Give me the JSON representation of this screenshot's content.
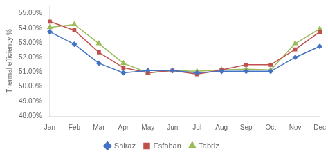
{
  "chart_data": {
    "type": "line",
    "categories": [
      "Jan",
      "Feb",
      "Mar",
      "Apr",
      "May",
      "Jun",
      "Jul",
      "Aug",
      "Sep",
      "Oct",
      "Nov",
      "Dec"
    ],
    "series": [
      {
        "name": "Shiraz",
        "color": "#4472C4",
        "marker": "diamond",
        "line_style": "solid",
        "values": [
          53.75,
          52.9,
          51.6,
          50.95,
          51.1,
          51.1,
          50.95,
          51.05,
          51.05,
          51.05,
          52.0,
          52.75
        ]
      },
      {
        "name": "Esfahan",
        "color": "#C0504D",
        "marker": "square",
        "line_style": "solid",
        "values": [
          54.45,
          53.85,
          52.35,
          51.3,
          50.95,
          51.1,
          50.85,
          51.15,
          51.5,
          51.5,
          52.55,
          53.75
        ]
      },
      {
        "name": "Tabriz",
        "color": "#9BBB59",
        "marker": "triangle",
        "line_style": "solid",
        "values": [
          54.05,
          54.25,
          52.95,
          51.6,
          50.95,
          51.1,
          51.05,
          51.15,
          51.2,
          51.15,
          52.95,
          53.95
        ]
      }
    ],
    "y_label": "Thermal efficiency %",
    "ylim": [
      48.0,
      55.5
    ],
    "yticks": [
      {
        "value": 48.0,
        "label": "48.00%"
      },
      {
        "value": 49.0,
        "label": "49.00%"
      },
      {
        "value": 50.0,
        "label": "50.00%"
      },
      {
        "value": 51.0,
        "label": "51.00%"
      },
      {
        "value": 52.0,
        "label": "52.00%"
      },
      {
        "value": 53.0,
        "label": "53.00%"
      },
      {
        "value": 54.0,
        "label": "54.00%"
      },
      {
        "value": 55.0,
        "label": "55.00%"
      }
    ],
    "grid": false,
    "legend": "bottom"
  }
}
